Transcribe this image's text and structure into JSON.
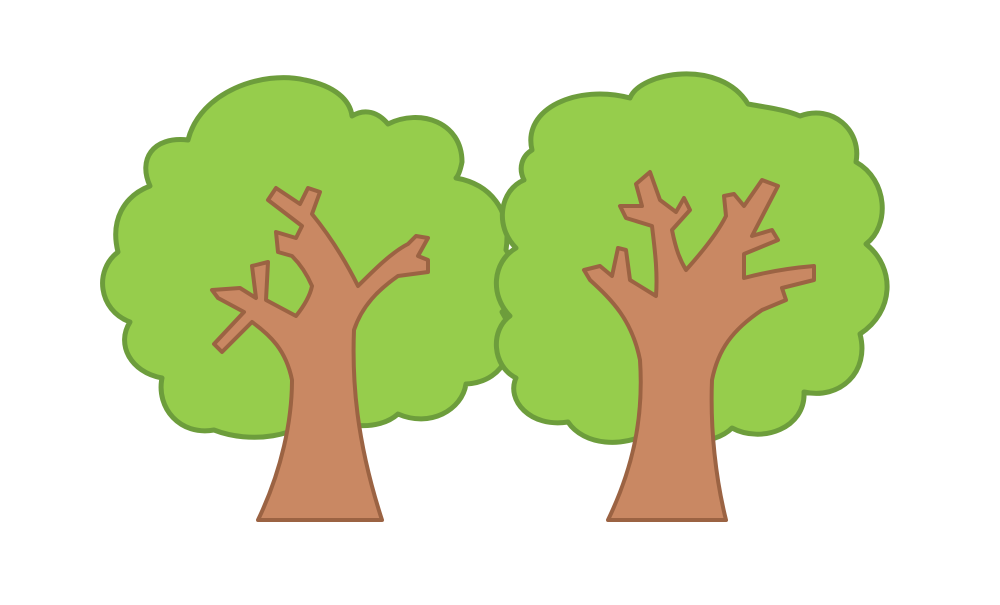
{
  "colors": {
    "background": "#ffffff",
    "foliage": "#96cd4c",
    "foliage_outline": "#6d9d3c",
    "trunk": "#c98863",
    "trunk_outline": "#9b6343"
  },
  "trees": [
    {
      "icon": "tree-icon"
    },
    {
      "icon": "tree-icon"
    }
  ]
}
